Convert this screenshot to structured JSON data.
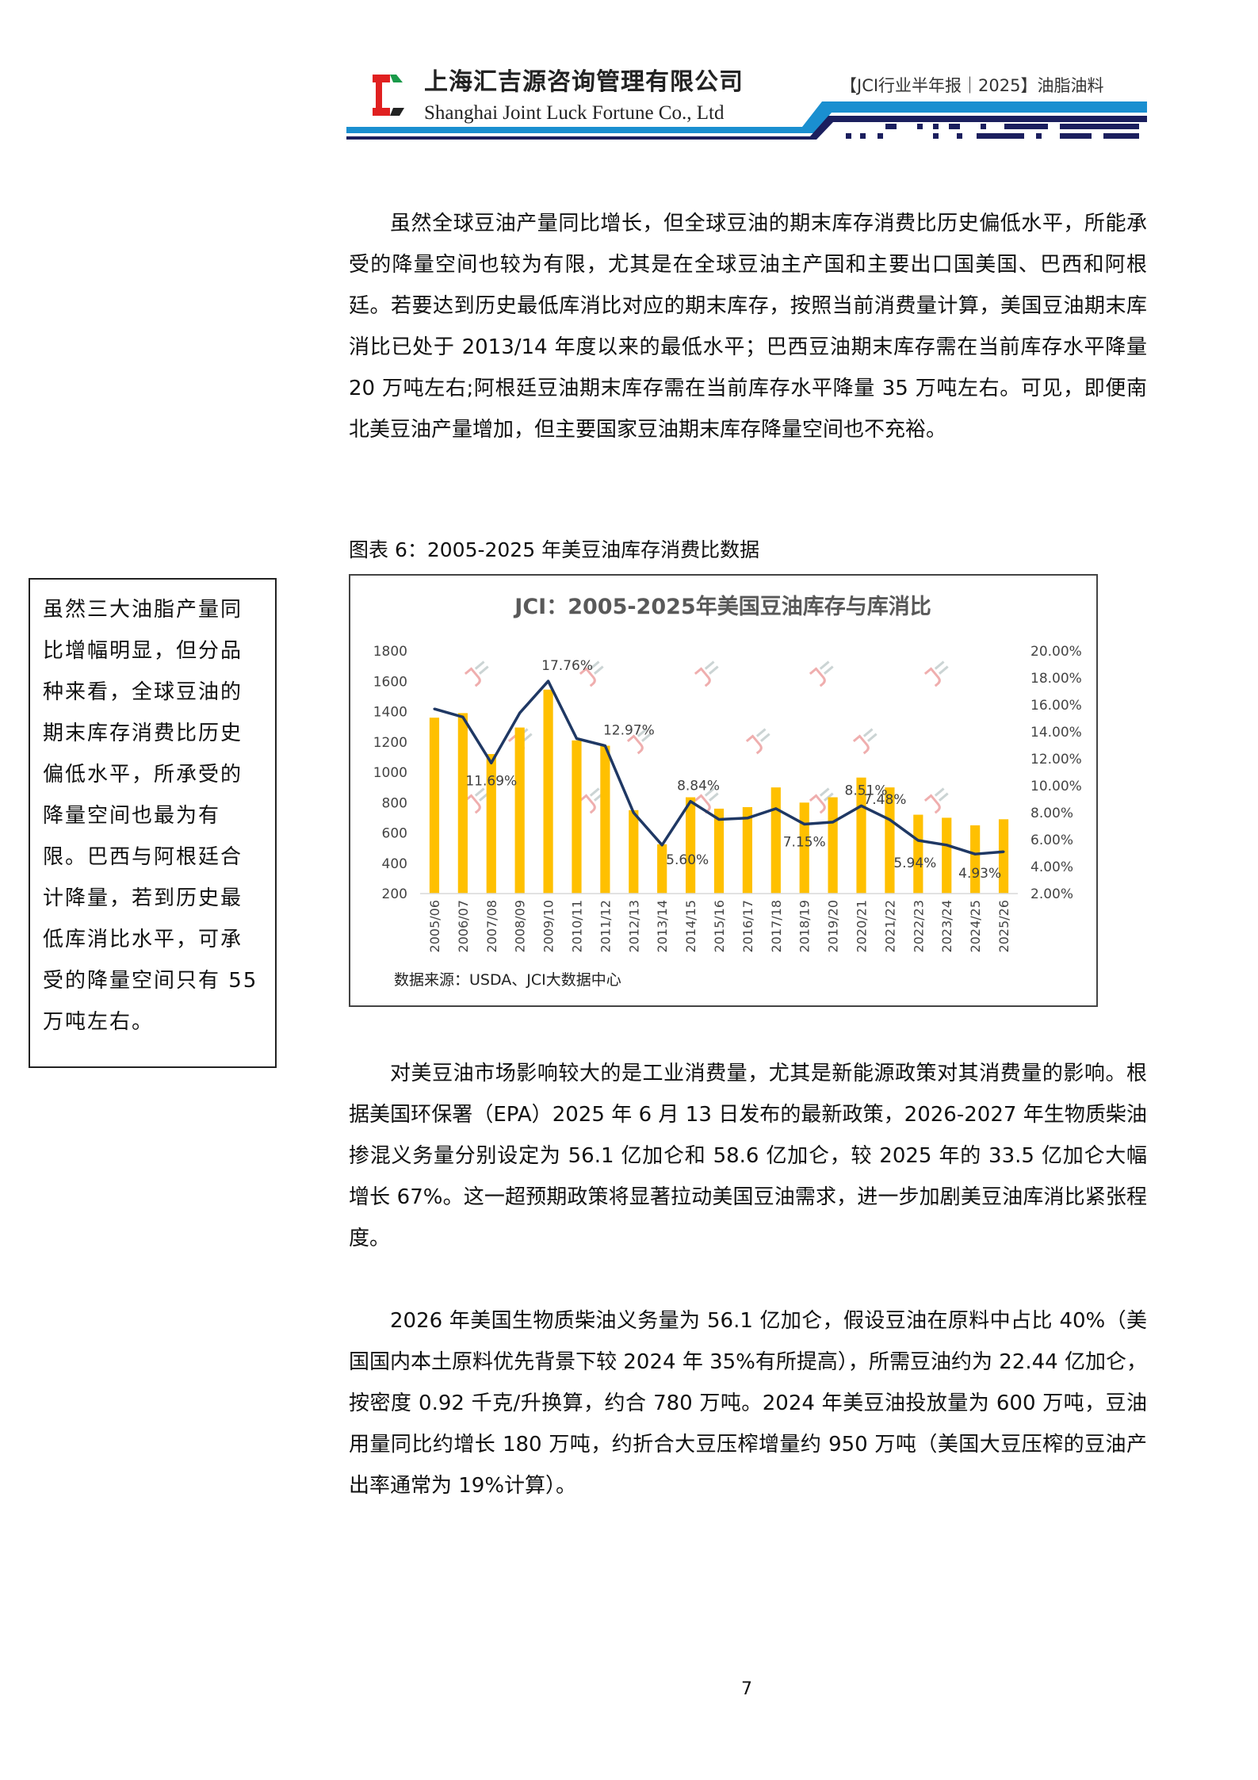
{
  "header": {
    "company_cn": "上海汇吉源咨询管理有限公司",
    "company_en": "Shanghai Joint Luck Fortune Co., Ltd",
    "report_tag": "【JCI行业半年报｜2025】油脂油料"
  },
  "paragraph1": "虽然全球豆油产量同比增长，但全球豆油的期末库存消费比历史偏低水平，所能承受的降量空间也较为有限，尤其是在全球豆油主产国和主要出口国美国、巴西和阿根廷。若要达到历史最低库消比对应的期末库存，按照当前消费量计算，美国豆油期末库消比已处于 2013/14 年度以来的最低水平；巴西豆油期末库存需在当前库存水平降量 20 万吨左右;阿根廷豆油期末库存需在当前库存水平降量 35 万吨左右。可见，即便南北美豆油产量增加，但主要国家豆油期末库存降量空间也不充裕。",
  "figure_caption": "图表 6：2005-2025 年美豆油库存消费比数据",
  "sidebar_note": "虽然三大油脂产量同比增幅明显，但分品种来看，全球豆油的期末库存消费比历史偏低水平，所承受的降量空间也最为有限。巴西与阿根廷合计降量，若到历史最低库消比水平，可承受的降量空间只有 55 万吨左右。",
  "chart_data": {
    "type": "bar+line",
    "title": "JCI：2005-2025年美国豆油库存与库消比",
    "source": "数据来源：USDA、JCI大数据中心",
    "watermark": "汇易 JCI",
    "categories": [
      "2005/06",
      "2006/07",
      "2007/08",
      "2008/09",
      "2009/10",
      "2010/11",
      "2011/12",
      "2012/13",
      "2013/14",
      "2014/15",
      "2015/16",
      "2016/17",
      "2017/18",
      "2018/19",
      "2019/20",
      "2020/21",
      "2021/22",
      "2022/23",
      "2023/24",
      "2024/25",
      "2025/26"
    ],
    "series": [
      {
        "type": "bar",
        "axis": "left",
        "color": "#FFC000",
        "values": [
          1360,
          1390,
          1120,
          1295,
          1545,
          1210,
          1175,
          750,
          525,
          835,
          760,
          770,
          900,
          800,
          835,
          965,
          900,
          720,
          700,
          650,
          690
        ]
      },
      {
        "type": "line",
        "axis": "right",
        "color": "#1F3864",
        "values": [
          15.7,
          15.1,
          11.69,
          15.4,
          17.76,
          13.5,
          12.97,
          8.0,
          5.6,
          8.84,
          7.5,
          7.6,
          8.3,
          7.15,
          7.3,
          8.51,
          7.48,
          5.94,
          5.6,
          4.93,
          5.1
        ]
      }
    ],
    "data_labels": [
      {
        "category": "2007/08",
        "text": "11.69%"
      },
      {
        "category": "2009/10",
        "text": "17.76%"
      },
      {
        "category": "2011/12",
        "text": "12.97%"
      },
      {
        "category": "2013/14",
        "text": "5.60%"
      },
      {
        "category": "2014/15",
        "text": "8.84%"
      },
      {
        "category": "2018/19",
        "text": "7.15%"
      },
      {
        "category": "2020/21",
        "text": "8.51%"
      },
      {
        "category": "2021/22",
        "text": "7.48%"
      },
      {
        "category": "2022/23",
        "text": "5.94%"
      },
      {
        "category": "2024/25",
        "text": "4.93%"
      }
    ],
    "left_axis": {
      "ticks": [
        "200",
        "400",
        "600",
        "800",
        "1000",
        "1200",
        "1400",
        "1600",
        "1800"
      ],
      "ylim": [
        200,
        1800
      ]
    },
    "right_axis": {
      "ticks": [
        "2.00%",
        "4.00%",
        "6.00%",
        "8.00%",
        "10.00%",
        "12.00%",
        "14.00%",
        "16.00%",
        "18.00%",
        "20.00%"
      ],
      "ylim": [
        2,
        20
      ]
    },
    "grid": false,
    "legend": "none"
  },
  "paragraph2": "对美豆油市场影响较大的是工业消费量，尤其是新能源政策对其消费量的影响。根据美国环保署（EPA）2025 年 6 月 13 日发布的最新政策，2026-2027 年生物质柴油掺混义务量分别设定为 56.1 亿加仑和 58.6 亿加仑，较 2025 年的 33.5 亿加仑大幅增长 67%。这一超预期政策将显著拉动美国豆油需求，进一步加剧美豆油库消比紧张程度。",
  "paragraph3": "2026 年美国生物质柴油义务量为 56.1 亿加仑，假设豆油在原料中占比 40%（美国国内本土原料优先背景下较 2024 年 35%有所提高），所需豆油约为 22.44 亿加仑，按密度 0.92 千克/升换算，约合 780 万吨。2024 年美豆油投放量为 600 万吨，豆油用量同比约增长 180 万吨，约折合大豆压榨增量约 950 万吨（美国大豆压榨的豆油产出率通常为 19%计算）。",
  "page_number": "7",
  "colors": {
    "bar": "#FFC000",
    "line": "#1F3864",
    "header_blue": "#1a8fd0",
    "header_navy": "#1b1f5e",
    "logo_red": "#e02020",
    "logo_green": "#1a9a4a"
  }
}
